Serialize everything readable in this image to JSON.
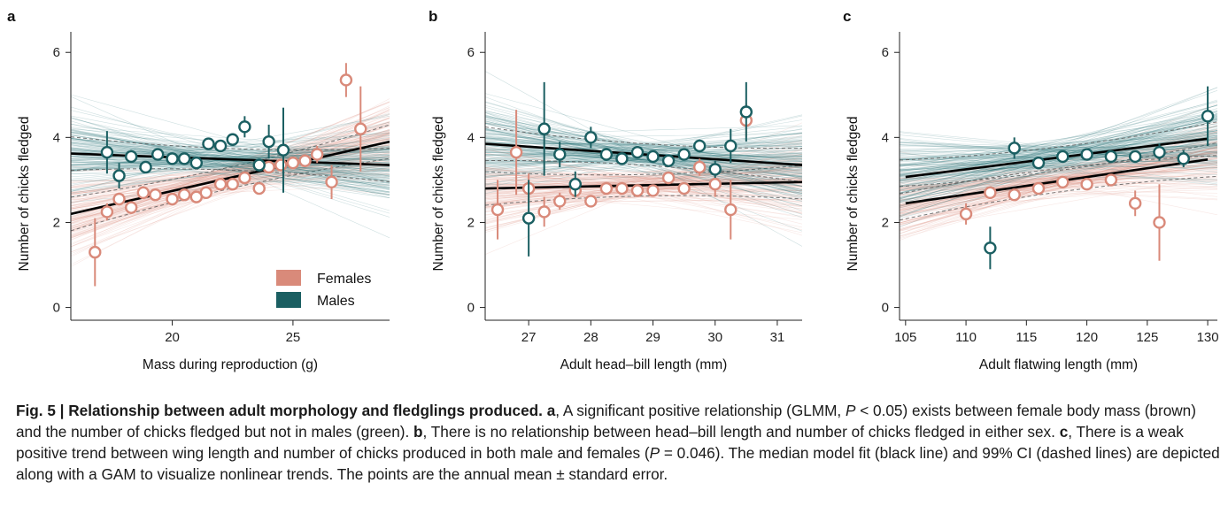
{
  "colors": {
    "females": "#d98a7a",
    "males": "#1b5f62",
    "female_band": "#e0988a",
    "male_band": "#1f6e70",
    "fit": "#000000"
  },
  "legend": {
    "females": "Females",
    "males": "Males",
    "placement": "bottom-right of panel a"
  },
  "chart_data": [
    {
      "panel": "a",
      "type": "scatter",
      "xlabel": "Mass during reproduction (g)",
      "ylabel": "Number of chicks fledged",
      "xlim": [
        15.8,
        29
      ],
      "ylim": [
        -0.3,
        6.4
      ],
      "xticks": [
        20,
        25
      ],
      "yticks": [
        0,
        2,
        4,
        6
      ],
      "series": [
        {
          "name": "Females",
          "fit": [
            [
              15.8,
              2.2
            ],
            [
              29,
              3.9
            ]
          ],
          "points": [
            {
              "x": 16.8,
              "y": 1.3,
              "se": 0.8
            },
            {
              "x": 17.3,
              "y": 2.25,
              "se": 0.2
            },
            {
              "x": 17.8,
              "y": 2.55,
              "se": 0.15
            },
            {
              "x": 18.3,
              "y": 2.35,
              "se": 0.15
            },
            {
              "x": 18.8,
              "y": 2.7,
              "se": 0.15
            },
            {
              "x": 19.3,
              "y": 2.65,
              "se": 0.12
            },
            {
              "x": 20.0,
              "y": 2.55,
              "se": 0.12
            },
            {
              "x": 20.5,
              "y": 2.65,
              "se": 0.12
            },
            {
              "x": 21.0,
              "y": 2.6,
              "se": 0.1
            },
            {
              "x": 21.4,
              "y": 2.7,
              "se": 0.1
            },
            {
              "x": 22.0,
              "y": 2.9,
              "se": 0.1
            },
            {
              "x": 22.5,
              "y": 2.9,
              "se": 0.1
            },
            {
              "x": 23.0,
              "y": 3.05,
              "se": 0.1
            },
            {
              "x": 23.6,
              "y": 2.8,
              "se": 0.1
            },
            {
              "x": 24.0,
              "y": 3.3,
              "se": 0.12
            },
            {
              "x": 24.5,
              "y": 3.35,
              "se": 0.12
            },
            {
              "x": 25.0,
              "y": 3.4,
              "se": 0.15
            },
            {
              "x": 25.5,
              "y": 3.45,
              "se": 0.15
            },
            {
              "x": 26.0,
              "y": 3.6,
              "se": 0.2
            },
            {
              "x": 26.6,
              "y": 2.95,
              "se": 0.4
            },
            {
              "x": 27.2,
              "y": 5.35,
              "se": 0.4
            },
            {
              "x": 27.8,
              "y": 4.2,
              "se": 1.0
            }
          ]
        },
        {
          "name": "Males",
          "fit": [
            [
              15.8,
              3.62
            ],
            [
              29,
              3.35
            ]
          ],
          "points": [
            {
              "x": 17.3,
              "y": 3.65,
              "se": 0.5
            },
            {
              "x": 17.8,
              "y": 3.1,
              "se": 0.3
            },
            {
              "x": 18.3,
              "y": 3.55,
              "se": 0.15
            },
            {
              "x": 18.9,
              "y": 3.3,
              "se": 0.12
            },
            {
              "x": 19.4,
              "y": 3.6,
              "se": 0.1
            },
            {
              "x": 20.0,
              "y": 3.5,
              "se": 0.1
            },
            {
              "x": 20.5,
              "y": 3.5,
              "se": 0.1
            },
            {
              "x": 21.0,
              "y": 3.4,
              "se": 0.1
            },
            {
              "x": 21.5,
              "y": 3.85,
              "se": 0.1
            },
            {
              "x": 22.0,
              "y": 3.8,
              "se": 0.1
            },
            {
              "x": 22.5,
              "y": 3.95,
              "se": 0.15
            },
            {
              "x": 23.0,
              "y": 4.25,
              "se": 0.25
            },
            {
              "x": 23.6,
              "y": 3.35,
              "se": 0.15
            },
            {
              "x": 24.0,
              "y": 3.9,
              "se": 0.4
            },
            {
              "x": 24.6,
              "y": 3.7,
              "se": 1.0
            }
          ]
        }
      ]
    },
    {
      "panel": "b",
      "type": "scatter",
      "xlabel": "Adult head–bill length (mm)",
      "ylabel": "Number of chicks fledged",
      "xlim": [
        26.3,
        31.4
      ],
      "ylim": [
        -0.3,
        6.4
      ],
      "xticks": [
        27,
        28,
        29,
        30,
        31
      ],
      "yticks": [
        0,
        2,
        4,
        6
      ],
      "series": [
        {
          "name": "Females",
          "fit": [
            [
              26.3,
              2.8
            ],
            [
              31.4,
              2.95
            ]
          ],
          "points": [
            {
              "x": 26.5,
              "y": 2.3,
              "se": 0.7
            },
            {
              "x": 26.8,
              "y": 3.65,
              "se": 1.0
            },
            {
              "x": 27.0,
              "y": 2.8,
              "se": 0.35
            },
            {
              "x": 27.25,
              "y": 2.25,
              "se": 0.35
            },
            {
              "x": 27.5,
              "y": 2.5,
              "se": 0.2
            },
            {
              "x": 27.75,
              "y": 2.75,
              "se": 0.15
            },
            {
              "x": 28.0,
              "y": 2.5,
              "se": 0.12
            },
            {
              "x": 28.25,
              "y": 2.8,
              "se": 0.12
            },
            {
              "x": 28.5,
              "y": 2.8,
              "se": 0.1
            },
            {
              "x": 28.75,
              "y": 2.75,
              "se": 0.1
            },
            {
              "x": 29.0,
              "y": 2.75,
              "se": 0.1
            },
            {
              "x": 29.25,
              "y": 3.05,
              "se": 0.12
            },
            {
              "x": 29.5,
              "y": 2.8,
              "se": 0.12
            },
            {
              "x": 29.75,
              "y": 3.3,
              "se": 0.2
            },
            {
              "x": 30.0,
              "y": 2.9,
              "se": 0.3
            },
            {
              "x": 30.25,
              "y": 2.3,
              "se": 0.7
            },
            {
              "x": 30.5,
              "y": 4.4,
              "se": 0.4
            }
          ]
        },
        {
          "name": "Males",
          "fit": [
            [
              26.3,
              3.85
            ],
            [
              31.4,
              3.35
            ]
          ],
          "points": [
            {
              "x": 27.0,
              "y": 2.1,
              "se": 0.9
            },
            {
              "x": 27.25,
              "y": 4.2,
              "se": 1.1
            },
            {
              "x": 27.5,
              "y": 3.6,
              "se": 0.3
            },
            {
              "x": 27.75,
              "y": 2.9,
              "se": 0.3
            },
            {
              "x": 28.0,
              "y": 4.0,
              "se": 0.25
            },
            {
              "x": 28.25,
              "y": 3.6,
              "se": 0.15
            },
            {
              "x": 28.5,
              "y": 3.5,
              "se": 0.12
            },
            {
              "x": 28.75,
              "y": 3.65,
              "se": 0.1
            },
            {
              "x": 29.0,
              "y": 3.55,
              "se": 0.1
            },
            {
              "x": 29.25,
              "y": 3.45,
              "se": 0.1
            },
            {
              "x": 29.5,
              "y": 3.6,
              "se": 0.12
            },
            {
              "x": 29.75,
              "y": 3.8,
              "se": 0.15
            },
            {
              "x": 30.0,
              "y": 3.25,
              "se": 0.2
            },
            {
              "x": 30.25,
              "y": 3.8,
              "se": 0.4
            },
            {
              "x": 30.5,
              "y": 4.6,
              "se": 0.7
            }
          ]
        }
      ]
    },
    {
      "panel": "c",
      "type": "scatter",
      "xlabel": "Adult flatwing length (mm)",
      "ylabel": "Number of chicks fledged",
      "xlim": [
        104.5,
        130.8
      ],
      "ylim": [
        -0.3,
        6.4
      ],
      "xticks": [
        105,
        110,
        115,
        120,
        125,
        130
      ],
      "yticks": [
        0,
        2,
        4,
        6
      ],
      "series": [
        {
          "name": "Females",
          "fit": [
            [
              105,
              2.45
            ],
            [
              130,
              3.48
            ]
          ],
          "points": [
            {
              "x": 110,
              "y": 2.2,
              "se": 0.25
            },
            {
              "x": 112,
              "y": 2.7,
              "se": 0.15
            },
            {
              "x": 114,
              "y": 2.65,
              "se": 0.12
            },
            {
              "x": 116,
              "y": 2.8,
              "se": 0.1
            },
            {
              "x": 118,
              "y": 2.95,
              "se": 0.1
            },
            {
              "x": 120,
              "y": 2.9,
              "se": 0.1
            },
            {
              "x": 122,
              "y": 3.0,
              "se": 0.12
            },
            {
              "x": 124,
              "y": 2.45,
              "se": 0.3
            },
            {
              "x": 126,
              "y": 2.0,
              "se": 0.9
            }
          ]
        },
        {
          "name": "Males",
          "fit": [
            [
              105,
              3.07
            ],
            [
              130,
              3.97
            ]
          ],
          "points": [
            {
              "x": 112,
              "y": 1.4,
              "se": 0.5
            },
            {
              "x": 114,
              "y": 3.75,
              "se": 0.25
            },
            {
              "x": 116,
              "y": 3.4,
              "se": 0.12
            },
            {
              "x": 118,
              "y": 3.55,
              "se": 0.1
            },
            {
              "x": 120,
              "y": 3.6,
              "se": 0.1
            },
            {
              "x": 122,
              "y": 3.55,
              "se": 0.1
            },
            {
              "x": 124,
              "y": 3.55,
              "se": 0.12
            },
            {
              "x": 126,
              "y": 3.65,
              "se": 0.2
            },
            {
              "x": 128,
              "y": 3.5,
              "se": 0.2
            },
            {
              "x": 130,
              "y": 4.5,
              "se": 0.7
            }
          ]
        }
      ]
    }
  ],
  "caption": {
    "fig_label": "Fig. 5 | Relationship between adult morphology and fledglings produced.",
    "a_label": "a",
    "a_text_1": ", A significant positive relationship (GLMM, ",
    "p_symbol": "P",
    "a_text_2": " < 0.05) exists between female body mass (brown) and the number of chicks fledged but not in males (green). ",
    "b_label": "b",
    "b_text": ", There is no relationship between head–bill length and number of chicks fledged in either sex. ",
    "c_label": "c",
    "c_text_1": ", There is a weak positive trend between wing length and number of chicks produced in both male and females (",
    "p_symbol_2": "P",
    "c_text_2": " = 0.046). The median model fit (black line) and 99% CI (dashed lines) are depicted along with a GAM to visualize nonlinear trends. The points are the annual mean ± standard error."
  }
}
